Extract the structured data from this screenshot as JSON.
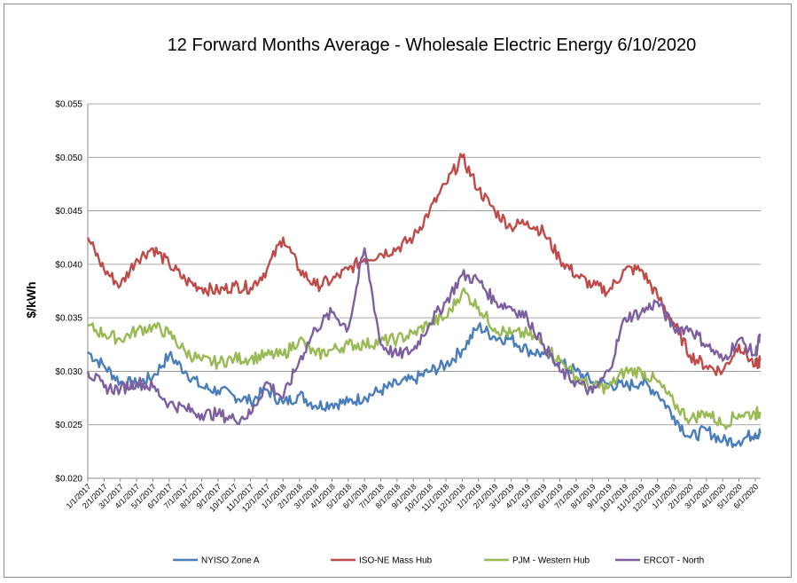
{
  "chart_data": {
    "type": "line",
    "title": "12 Forward Months Average - Wholesale Electric Energy 6/10/2020",
    "ylabel": "$/kWh",
    "xlabel": "",
    "ylim": [
      0.02,
      0.055
    ],
    "y_ticks": [
      "$0.020",
      "$0.025",
      "$0.030",
      "$0.035",
      "$0.040",
      "$0.045",
      "$0.050",
      "$0.055"
    ],
    "x_ticks": [
      "1/1/2017",
      "2/1/2017",
      "3/1/2017",
      "4/1/2017",
      "5/1/2017",
      "6/1/2017",
      "7/1/2017",
      "8/1/2017",
      "9/1/2017",
      "10/1/2017",
      "11/1/2017",
      "12/1/2017",
      "1/1/2018",
      "2/1/2018",
      "3/1/2018",
      "4/1/2018",
      "5/1/2018",
      "6/1/2018",
      "7/1/2018",
      "8/1/2018",
      "9/1/2018",
      "10/1/2018",
      "11/1/2018",
      "12/1/2018",
      "1/1/2019",
      "2/1/2019",
      "3/1/2019",
      "4/1/2019",
      "5/1/2019",
      "6/1/2019",
      "7/1/2019",
      "8/1/2019",
      "9/1/2019",
      "10/1/2019",
      "11/1/2019",
      "12/1/2019",
      "1/1/2020",
      "2/1/2020",
      "3/1/2020",
      "4/1/2020",
      "5/1/2020",
      "6/1/2020"
    ],
    "grid": "horizontal",
    "legend_position": "bottom",
    "x": [
      "2017-01",
      "2017-02",
      "2017-03",
      "2017-04",
      "2017-05",
      "2017-06",
      "2017-07",
      "2017-08",
      "2017-09",
      "2017-10",
      "2017-11",
      "2017-12",
      "2018-01",
      "2018-02",
      "2018-03",
      "2018-04",
      "2018-05",
      "2018-06",
      "2018-07",
      "2018-08",
      "2018-09",
      "2018-10",
      "2018-11",
      "2018-12",
      "2019-01",
      "2019-02",
      "2019-03",
      "2019-04",
      "2019-05",
      "2019-06",
      "2019-07",
      "2019-08",
      "2019-09",
      "2019-10",
      "2019-11",
      "2019-12",
      "2020-01",
      "2020-02",
      "2020-03",
      "2020-04",
      "2020-05",
      "2020-06",
      "2020-06-10"
    ],
    "series": [
      {
        "name": "NYISO Zone A",
        "color": "#4a7ebb",
        "values": [
          0.0318,
          0.0305,
          0.029,
          0.0288,
          0.0295,
          0.0315,
          0.03,
          0.0285,
          0.0282,
          0.0277,
          0.0272,
          0.0283,
          0.027,
          0.0278,
          0.0268,
          0.027,
          0.0271,
          0.0276,
          0.0282,
          0.0288,
          0.0292,
          0.03,
          0.0306,
          0.032,
          0.0342,
          0.0332,
          0.033,
          0.032,
          0.0316,
          0.0308,
          0.03,
          0.029,
          0.0288,
          0.0286,
          0.029,
          0.028,
          0.0258,
          0.0238,
          0.0245,
          0.0235,
          0.0235,
          0.0242,
          0.0242
        ]
      },
      {
        "name": "ISO-NE Mass Hub",
        "color": "#be4b48",
        "values": [
          0.0425,
          0.0395,
          0.038,
          0.0405,
          0.0415,
          0.04,
          0.0385,
          0.0378,
          0.0375,
          0.038,
          0.0378,
          0.0395,
          0.0425,
          0.0395,
          0.038,
          0.0385,
          0.0395,
          0.0405,
          0.041,
          0.0415,
          0.0425,
          0.045,
          0.0475,
          0.05,
          0.047,
          0.045,
          0.0435,
          0.044,
          0.043,
          0.0405,
          0.039,
          0.038,
          0.0375,
          0.0395,
          0.0395,
          0.037,
          0.0345,
          0.0315,
          0.0305,
          0.03,
          0.0325,
          0.0305,
          0.031
        ]
      },
      {
        "name": "PJM - Western Hub",
        "color": "#98b954",
        "values": [
          0.0342,
          0.0335,
          0.033,
          0.0338,
          0.0342,
          0.0335,
          0.0318,
          0.031,
          0.0308,
          0.0312,
          0.0312,
          0.0315,
          0.0315,
          0.033,
          0.0315,
          0.032,
          0.0325,
          0.0325,
          0.0328,
          0.033,
          0.0335,
          0.0345,
          0.035,
          0.0375,
          0.036,
          0.034,
          0.0335,
          0.0335,
          0.0325,
          0.031,
          0.0295,
          0.0285,
          0.0285,
          0.03,
          0.03,
          0.029,
          0.027,
          0.0255,
          0.0262,
          0.025,
          0.026,
          0.026,
          0.0262
        ]
      },
      {
        "name": "ERCOT - North",
        "color": "#7d5fa0",
        "values": [
          0.03,
          0.0285,
          0.0283,
          0.029,
          0.0285,
          0.027,
          0.0265,
          0.026,
          0.026,
          0.0255,
          0.026,
          0.029,
          0.0275,
          0.031,
          0.034,
          0.0355,
          0.034,
          0.0415,
          0.0325,
          0.0315,
          0.032,
          0.0345,
          0.0365,
          0.039,
          0.0385,
          0.0365,
          0.036,
          0.035,
          0.0325,
          0.03,
          0.029,
          0.028,
          0.03,
          0.035,
          0.0355,
          0.0365,
          0.034,
          0.034,
          0.0325,
          0.031,
          0.033,
          0.0315,
          0.0333
        ]
      }
    ]
  }
}
